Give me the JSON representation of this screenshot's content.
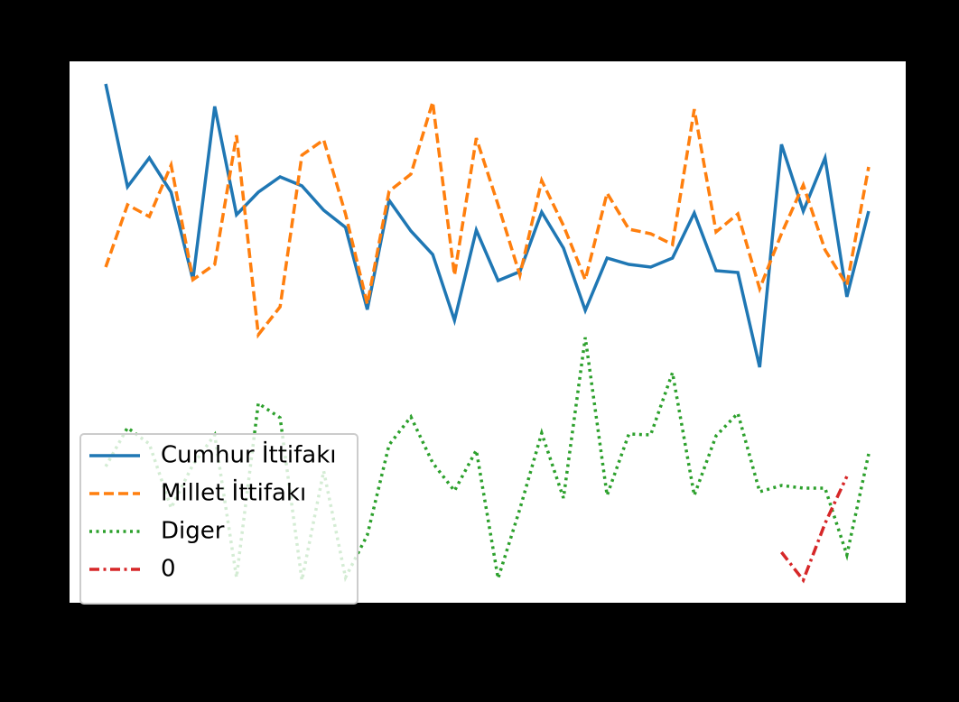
{
  "chart_data": {
    "type": "line",
    "x": [
      0,
      1,
      2,
      3,
      4,
      5,
      6,
      7,
      8,
      9,
      10,
      11,
      12,
      13,
      14,
      15,
      16,
      17,
      18,
      19,
      20,
      21,
      22,
      23,
      24,
      25,
      26,
      27,
      28,
      29,
      30,
      31,
      32,
      33,
      34,
      35
    ],
    "xlim": [
      -1.66,
      36.7
    ],
    "ylim": [
      0,
      600
    ],
    "legend": "lower left",
    "series": [
      {
        "name": "Cumhur İttifakı",
        "color": "#1f77b4",
        "dash": "solid",
        "values": [
          575,
          461,
          493,
          455,
          358,
          550,
          430,
          455,
          472,
          462,
          435,
          416,
          325,
          446,
          412,
          386,
          313,
          413,
          357,
          367,
          433,
          393,
          324,
          382,
          375,
          372,
          382,
          432,
          368,
          366,
          261,
          508,
          434,
          493,
          339,
          434
        ]
      },
      {
        "name": "Millet İttifakı",
        "color": "#ff7f0e",
        "dash": "dashed",
        "values": [
          372,
          441,
          428,
          485,
          358,
          375,
          518,
          297,
          328,
          496,
          513,
          431,
          331,
          456,
          475,
          555,
          363,
          515,
          441,
          363,
          468,
          418,
          358,
          454,
          414,
          409,
          397,
          547,
          411,
          431,
          348,
          409,
          463,
          391,
          352,
          483
        ]
      },
      {
        "name": "Diger",
        "color": "#2ca02c",
        "dash": "dotted",
        "values": [
          151,
          194,
          176,
          105,
          153,
          186,
          28,
          221,
          205,
          25,
          146,
          28,
          75,
          175,
          206,
          155,
          124,
          169,
          27,
          104,
          188,
          116,
          294,
          119,
          187,
          186,
          255,
          119,
          185,
          210,
          123,
          130,
          127,
          127,
          53,
          165
        ]
      },
      {
        "name": "0",
        "color": "#d62728",
        "dash": "dashdot",
        "values": [
          null,
          null,
          null,
          null,
          null,
          null,
          null,
          null,
          null,
          null,
          null,
          null,
          null,
          null,
          null,
          null,
          null,
          null,
          null,
          null,
          null,
          null,
          null,
          null,
          null,
          null,
          null,
          null,
          null,
          null,
          null,
          56,
          25,
          88,
          140,
          null
        ]
      }
    ]
  }
}
